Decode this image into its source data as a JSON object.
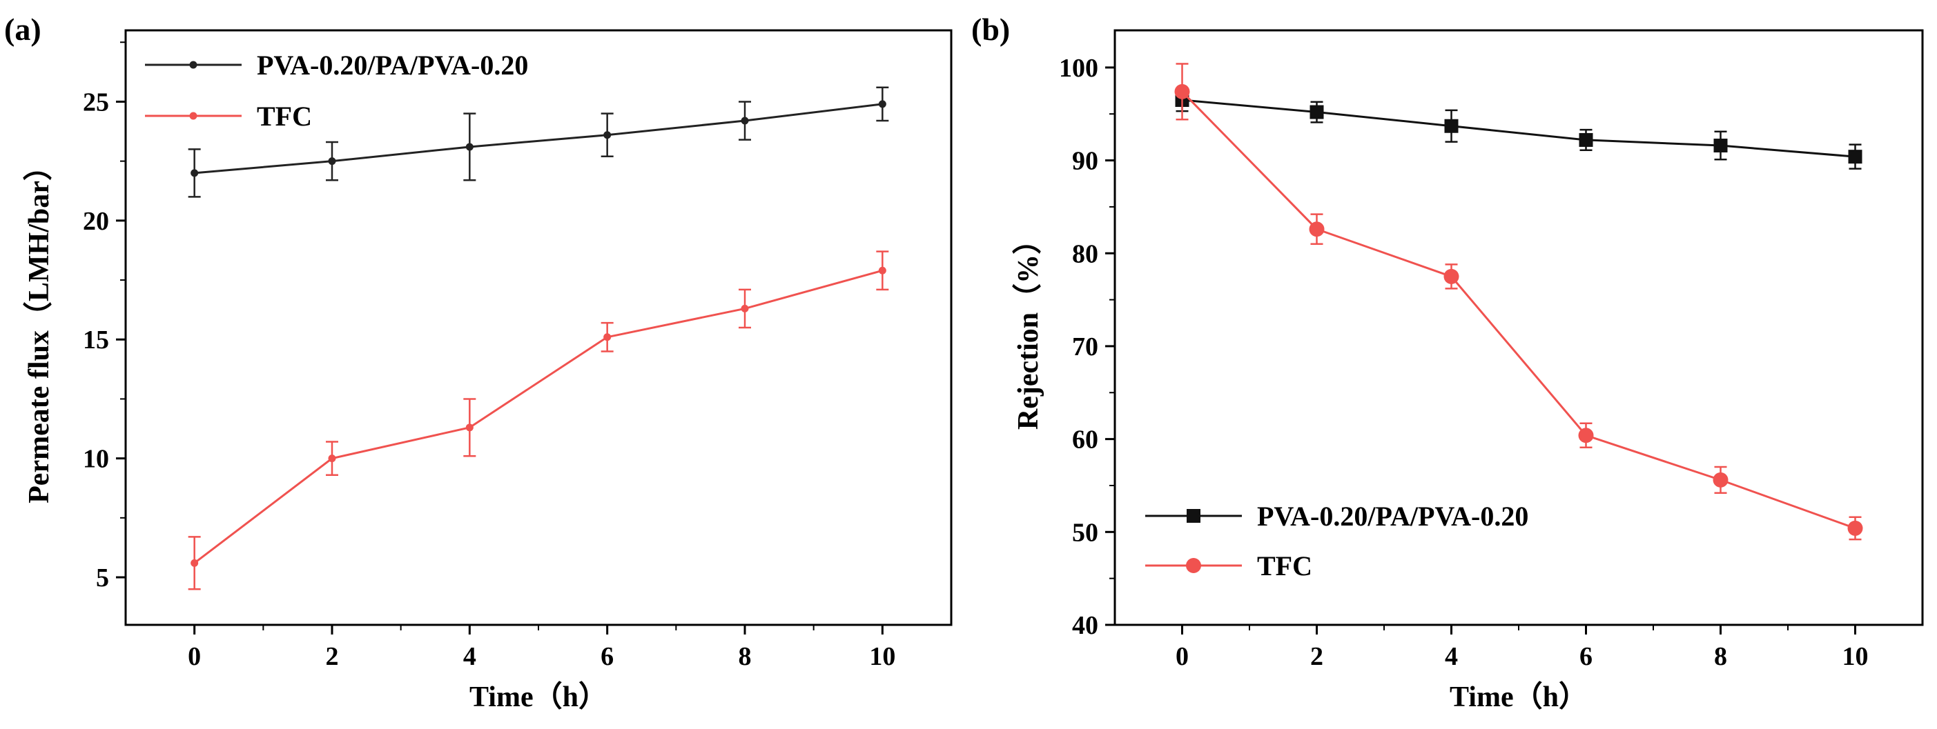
{
  "chart_data": [
    {
      "type": "line",
      "panel_label": "(a)",
      "title": "",
      "xlabel": "Time（h）",
      "ylabel": "Permeate flux（LMH/bar）",
      "xlim": [
        -1,
        11
      ],
      "ylim": [
        3,
        28
      ],
      "xticks": [
        0,
        2,
        4,
        6,
        8,
        10
      ],
      "yticks": [
        5,
        10,
        15,
        20,
        25
      ],
      "legend_position": "top-left",
      "marker": "circle-small",
      "series": [
        {
          "name": "PVA-0.20/PA/PVA-0.20",
          "color": "#222222",
          "x": [
            0,
            2,
            4,
            6,
            8,
            10
          ],
          "y": [
            22.0,
            22.5,
            23.1,
            23.6,
            24.2,
            24.9
          ],
          "err": [
            1.0,
            0.8,
            1.4,
            0.9,
            0.8,
            0.7
          ]
        },
        {
          "name": "TFC",
          "color": "#f0524f",
          "x": [
            0,
            2,
            4,
            6,
            8,
            10
          ],
          "y": [
            5.6,
            10.0,
            11.3,
            15.1,
            16.3,
            17.9
          ],
          "err": [
            1.1,
            0.7,
            1.2,
            0.6,
            0.8,
            0.8
          ]
        }
      ]
    },
    {
      "type": "line",
      "panel_label": "(b)",
      "title": "",
      "xlabel": "Time（h）",
      "ylabel": "Rejection（%）",
      "xlim": [
        -1,
        11
      ],
      "ylim": [
        40,
        104
      ],
      "xticks": [
        0,
        2,
        4,
        6,
        8,
        10
      ],
      "yticks": [
        40,
        50,
        60,
        70,
        80,
        90,
        100
      ],
      "legend_position": "bottom-left",
      "marker": "large",
      "series": [
        {
          "name": "PVA-0.20/PA/PVA-0.20",
          "color": "#111111",
          "marker": "square",
          "x": [
            0,
            2,
            4,
            6,
            8,
            10
          ],
          "y": [
            96.5,
            95.2,
            93.7,
            92.2,
            91.6,
            90.4
          ],
          "err": [
            1.2,
            1.1,
            1.7,
            1.1,
            1.5,
            1.3
          ]
        },
        {
          "name": "TFC",
          "color": "#f0524f",
          "marker": "circle",
          "x": [
            0,
            2,
            4,
            6,
            8,
            10
          ],
          "y": [
            97.4,
            82.6,
            77.5,
            60.4,
            55.6,
            50.4
          ],
          "err": [
            3.0,
            1.6,
            1.3,
            1.3,
            1.4,
            1.2
          ]
        }
      ]
    }
  ]
}
